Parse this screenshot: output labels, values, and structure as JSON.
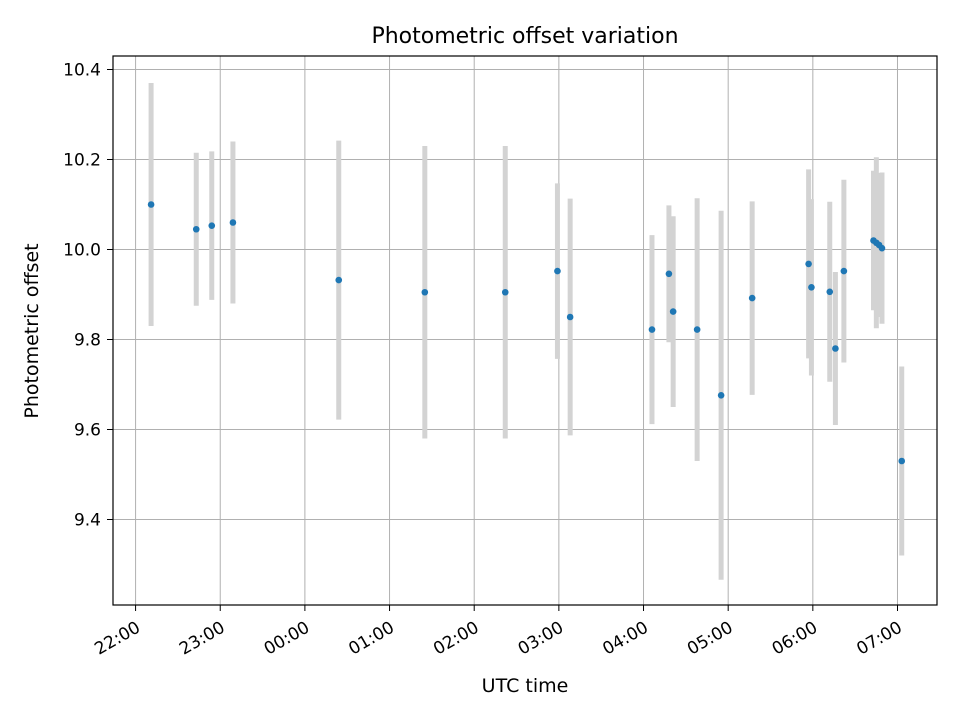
{
  "chart_data": {
    "type": "scatter",
    "title": "Photometric offset variation",
    "xlabel": "UTC time",
    "ylabel": "Photometric offset",
    "grid": true,
    "legend": "none",
    "xlim": [
      "21:44",
      "07:28"
    ],
    "ylim": [
      9.21,
      10.43
    ],
    "x_ticks": [
      "22:00",
      "23:00",
      "00:00",
      "01:00",
      "02:00",
      "03:00",
      "04:00",
      "05:00",
      "06:00",
      "07:00"
    ],
    "y_ticks": [
      9.4,
      9.6,
      9.8,
      10.0,
      10.2,
      10.4
    ],
    "y_tick_labels": [
      "9.4",
      "9.6",
      "9.8",
      "10.0",
      "10.2",
      "10.4"
    ],
    "colors": {
      "point": "#1f77b4",
      "errorbar": "#d3d3d3",
      "grid": "#b0b0b0"
    },
    "points": [
      {
        "t": "22:11",
        "y": 10.1,
        "err": 0.27
      },
      {
        "t": "22:43",
        "y": 10.045,
        "err": 0.17
      },
      {
        "t": "22:54",
        "y": 10.053,
        "err": 0.165
      },
      {
        "t": "23:09",
        "y": 10.06,
        "err": 0.18
      },
      {
        "t": "00:24",
        "y": 9.932,
        "err": 0.31
      },
      {
        "t": "01:25",
        "y": 9.905,
        "err": 0.325
      },
      {
        "t": "02:22",
        "y": 9.905,
        "err": 0.325
      },
      {
        "t": "02:59",
        "y": 9.952,
        "err": 0.195
      },
      {
        "t": "03:08",
        "y": 9.85,
        "err": 0.263
      },
      {
        "t": "04:06",
        "y": 9.822,
        "err": 0.21
      },
      {
        "t": "04:18",
        "y": 9.946,
        "err": 0.152
      },
      {
        "t": "04:21",
        "y": 9.862,
        "err": 0.212
      },
      {
        "t": "04:38",
        "y": 9.822,
        "err": 0.292
      },
      {
        "t": "04:55",
        "y": 9.676,
        "err": 0.41
      },
      {
        "t": "05:17",
        "y": 9.892,
        "err": 0.215
      },
      {
        "t": "05:57",
        "y": 9.968,
        "err": 0.21
      },
      {
        "t": "05:59",
        "y": 9.916,
        "err": 0.196
      },
      {
        "t": "06:12",
        "y": 9.906,
        "err": 0.2
      },
      {
        "t": "06:16",
        "y": 9.78,
        "err": 0.17
      },
      {
        "t": "06:22",
        "y": 9.952,
        "err": 0.203
      },
      {
        "t": "06:43",
        "y": 10.02,
        "err": 0.155
      },
      {
        "t": "06:45",
        "y": 10.015,
        "err": 0.19
      },
      {
        "t": "06:47",
        "y": 10.01,
        "err": 0.16
      },
      {
        "t": "06:49",
        "y": 10.003,
        "err": 0.168
      },
      {
        "t": "07:03",
        "y": 9.53,
        "err": 0.21
      }
    ]
  }
}
